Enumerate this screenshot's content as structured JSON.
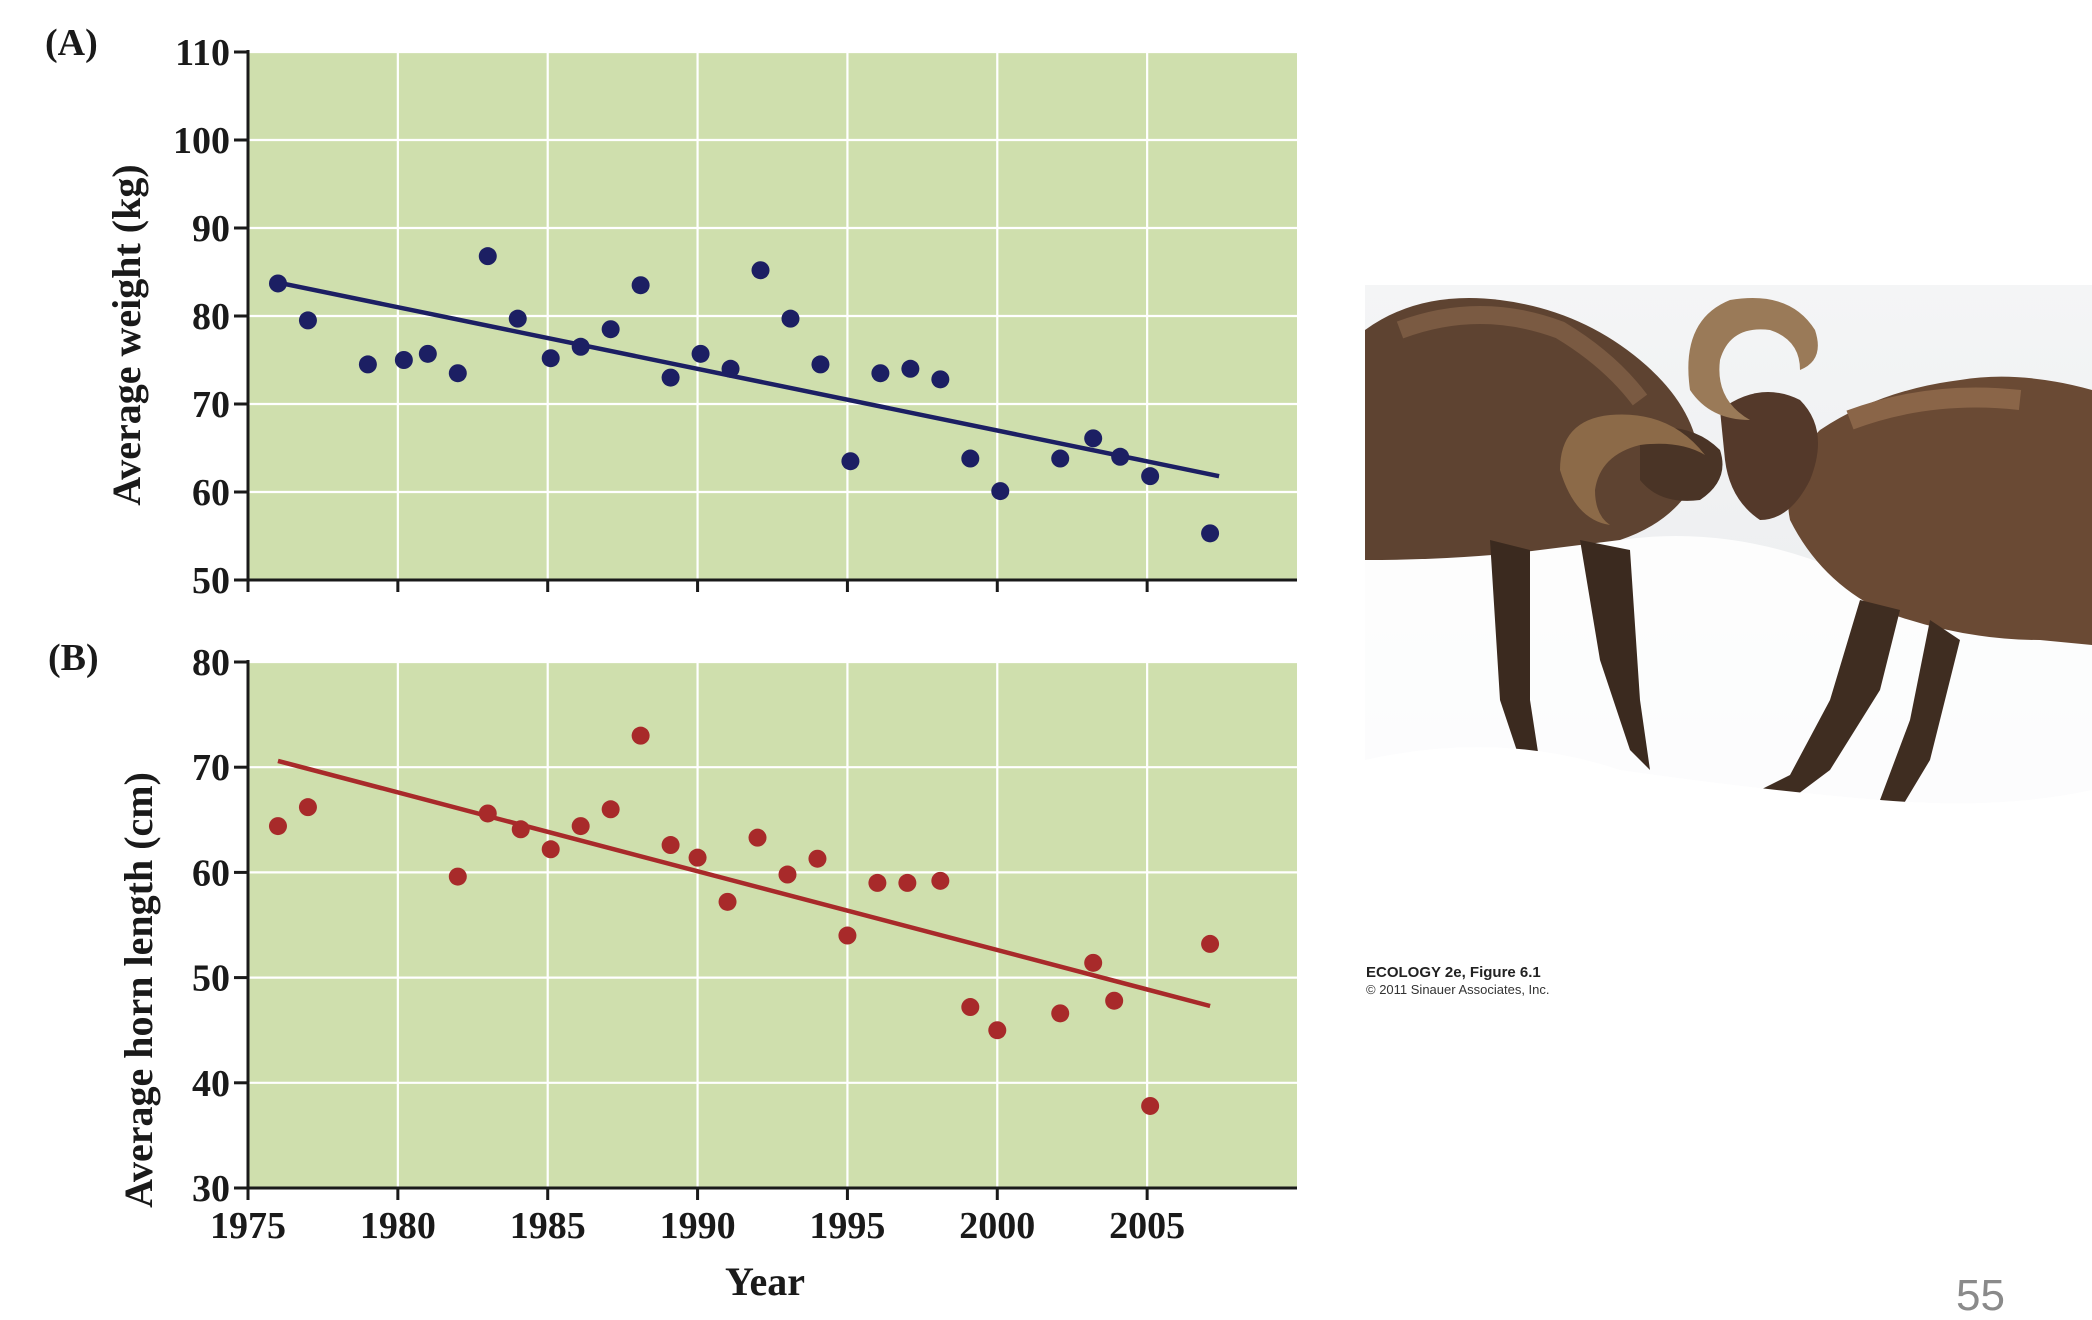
{
  "chart_data": [
    {
      "type": "scatter",
      "panel_label": "(A)",
      "xlabel": "",
      "ylabel": "Average weight (kg)",
      "xlim": [
        1975,
        2010
      ],
      "ylim": [
        50,
        110
      ],
      "xticks": [
        1975,
        1980,
        1985,
        1990,
        1995,
        2000,
        2005
      ],
      "yticks": [
        50,
        60,
        70,
        80,
        90,
        100,
        110
      ],
      "grid": true,
      "background_color": "#cfdfad",
      "point_color": "#1c1f63",
      "series": [
        {
          "points": [
            [
              1976,
              83.7
            ],
            [
              1977,
              79.5
            ],
            [
              1979,
              74.5
            ],
            [
              1980.2,
              75
            ],
            [
              1981,
              75.7
            ],
            [
              1982,
              73.5
            ],
            [
              1983,
              86.8
            ],
            [
              1984,
              79.7
            ],
            [
              1985.1,
              75.2
            ],
            [
              1986.1,
              76.5
            ],
            [
              1987.1,
              78.5
            ],
            [
              1988.1,
              83.5
            ],
            [
              1989.1,
              73
            ],
            [
              1990.1,
              75.7
            ],
            [
              1991.1,
              74
            ],
            [
              1992.1,
              85.2
            ],
            [
              1993.1,
              79.7
            ],
            [
              1994.1,
              74.5
            ],
            [
              1995.1,
              63.5
            ],
            [
              1996.1,
              73.5
            ],
            [
              1997.1,
              74
            ],
            [
              1998.1,
              72.8
            ],
            [
              1999.1,
              63.8
            ],
            [
              2000.1,
              60.1
            ],
            [
              2002.1,
              63.8
            ],
            [
              2003.2,
              66.1
            ],
            [
              2004.1,
              64
            ],
            [
              2005.1,
              61.8
            ],
            [
              2007.1,
              55.3
            ]
          ]
        }
      ],
      "trendline": {
        "x": [
          1976,
          2007.4
        ],
        "y": [
          83.8,
          61.8
        ]
      }
    },
    {
      "type": "scatter",
      "panel_label": "(B)",
      "xlabel": "Year",
      "ylabel": "Average horn length (cm)",
      "xlim": [
        1975,
        2010
      ],
      "ylim": [
        30,
        80
      ],
      "xticks": [
        1975,
        1980,
        1985,
        1990,
        1995,
        2000,
        2005
      ],
      "yticks": [
        30,
        40,
        50,
        60,
        70,
        80
      ],
      "grid": true,
      "background_color": "#cfdfad",
      "point_color": "#a82a2a",
      "series": [
        {
          "points": [
            [
              1976,
              64.4
            ],
            [
              1977,
              66.2
            ],
            [
              1982,
              59.6
            ],
            [
              1983,
              65.6
            ],
            [
              1984.1,
              64.1
            ],
            [
              1985.1,
              62.2
            ],
            [
              1986.1,
              64.4
            ],
            [
              1987.1,
              66.0
            ],
            [
              1988.1,
              73.0
            ],
            [
              1989.1,
              62.6
            ],
            [
              1990,
              61.4
            ],
            [
              1991,
              57.2
            ],
            [
              1992,
              63.3
            ],
            [
              1993,
              59.8
            ],
            [
              1994,
              61.3
            ],
            [
              1995,
              54.0
            ],
            [
              1996,
              59.0
            ],
            [
              1997,
              59.0
            ],
            [
              1998.1,
              59.2
            ],
            [
              1999.1,
              47.2
            ],
            [
              2000,
              45.0
            ],
            [
              2002.1,
              46.6
            ],
            [
              2003.2,
              51.4
            ],
            [
              2003.9,
              47.8
            ],
            [
              2005.1,
              37.8
            ],
            [
              2007.1,
              53.2
            ]
          ]
        }
      ],
      "trendline": {
        "x": [
          1976,
          2007.1
        ],
        "y": [
          70.6,
          47.3
        ]
      }
    }
  ],
  "photo": {
    "caption_line1": "ECOLOGY 2e, Figure 6.1",
    "caption_line2": "© 2011 Sinauer Associates, Inc."
  },
  "slide_number": "55"
}
